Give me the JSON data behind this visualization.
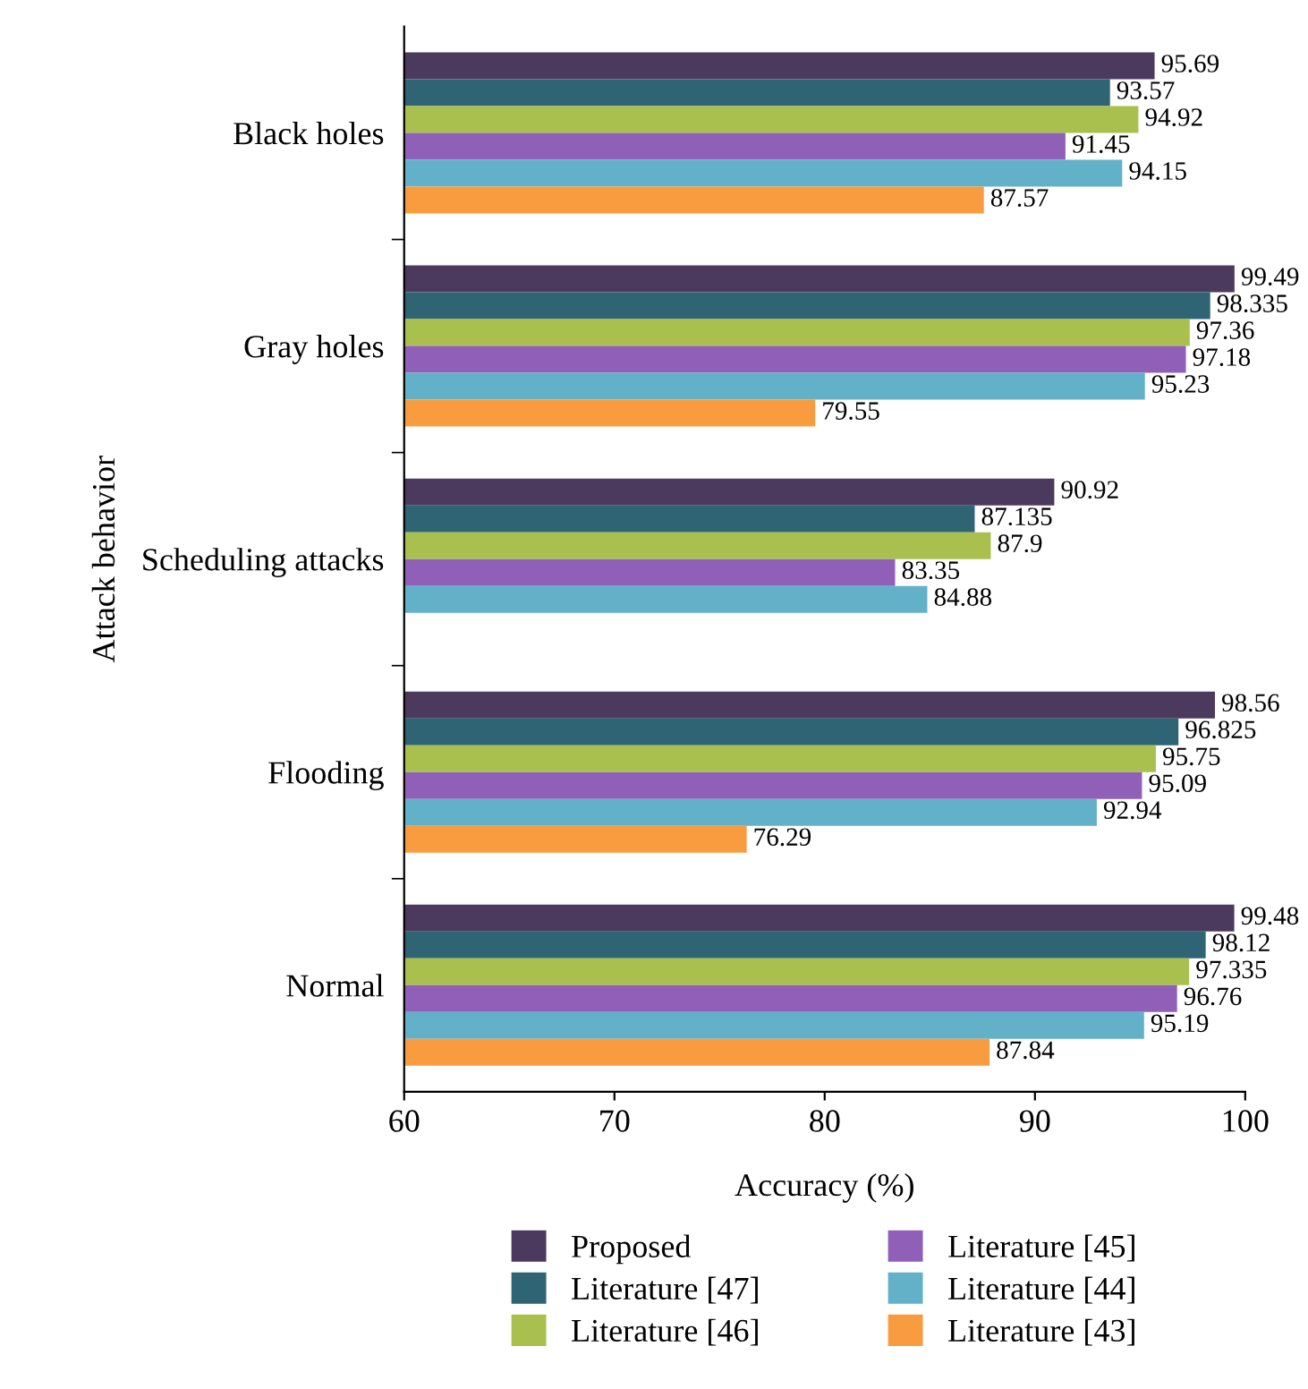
{
  "chart_data": {
    "type": "bar",
    "orientation": "horizontal",
    "xlabel": "Accuracy (%)",
    "ylabel": "Attack behavior",
    "categories": [
      "Black holes",
      "Gray holes",
      "Scheduling attacks",
      "Flooding",
      "Normal"
    ],
    "series": [
      {
        "name": "Proposed",
        "color": "#4b3a5e",
        "values": [
          95.69,
          99.49,
          90.92,
          98.56,
          99.48
        ]
      },
      {
        "name": "Literature [47]",
        "color": "#2e6474",
        "values": [
          93.57,
          98.335,
          87.135,
          96.825,
          98.12
        ]
      },
      {
        "name": "Literature [46]",
        "color": "#a9c04f",
        "values": [
          94.92,
          97.36,
          87.9,
          95.75,
          97.335
        ]
      },
      {
        "name": "Literature [45]",
        "color": "#9060b8",
        "values": [
          91.45,
          97.18,
          83.35,
          95.09,
          96.76
        ]
      },
      {
        "name": "Literature [44]",
        "color": "#62b1c9",
        "values": [
          94.15,
          95.23,
          84.88,
          92.94,
          95.19
        ]
      },
      {
        "name": "Literature [43]",
        "color": "#f89c3f",
        "values": [
          87.57,
          79.55,
          null,
          76.29,
          87.84
        ]
      }
    ],
    "xlim": [
      60,
      100
    ],
    "xticks": [
      60,
      70,
      80,
      90,
      100
    ],
    "data_labels": true,
    "grid": false,
    "legend": "bottom"
  }
}
